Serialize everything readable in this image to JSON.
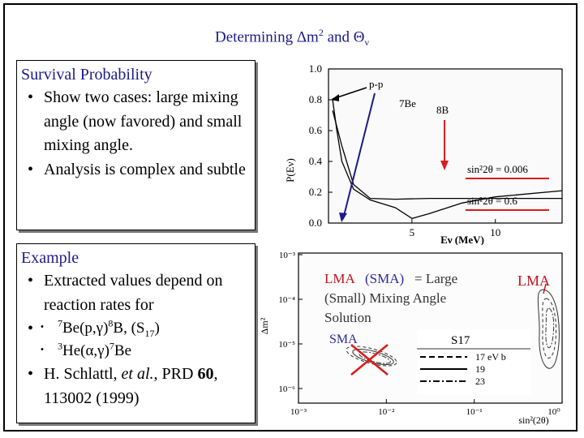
{
  "slide": {
    "title": {
      "prefix": "Determining ",
      "delta": "Δ",
      "m": "m",
      "exp": "2",
      "and": " and ",
      "theta": "Θ",
      "nu": "ν"
    }
  },
  "survival": {
    "heading": "Survival Probability",
    "bullets": [
      "Show two cases: large mixing angle (now favored) and small mixing angle.",
      "Analysis is complex and subtle"
    ]
  },
  "example": {
    "heading": "Example",
    "bullet1": "Extracted values depend on reaction rates for",
    "r1": {
      "m1": "7",
      "t1": "Be(p,γ)",
      "m2": "8",
      "t2": "B, (S",
      "s": "17",
      "t3": ")"
    },
    "r2": {
      "m1": "3",
      "t1": "He(α,γ)",
      "m2": "7",
      "t2": "Be"
    },
    "ref": {
      "pre": "H. Schlattl, ",
      "ital": "et al.",
      "mid": ", PRD ",
      "bold": "60",
      "post": ", 113002 (1999)"
    }
  },
  "chart_data": [
    {
      "type": "line",
      "xlabel": "Eν (MeV)",
      "ylabel": "P(Eν)",
      "xticks": [
        "5",
        "10"
      ],
      "yticks": [
        "0.0",
        "0.2",
        "0.4",
        "0.6",
        "0.8",
        "1.0"
      ],
      "ylim": [
        0,
        1.0
      ],
      "series": [
        {
          "name": "sin²2θ = 0.006",
          "points": [
            [
              0.25,
              0.73
            ],
            [
              0.8,
              0.5
            ],
            [
              1.5,
              0.25
            ],
            [
              2.5,
              0.16
            ],
            [
              4,
              0.155
            ],
            [
              6,
              0.16
            ],
            [
              10,
              0.16
            ],
            [
              14,
              0.16
            ]
          ]
        },
        {
          "name": "sin²2θ = 0.6",
          "points": [
            [
              0.25,
              0.8
            ],
            [
              0.5,
              0.6
            ],
            [
              0.8,
              0.4
            ],
            [
              1.5,
              0.22
            ],
            [
              2.5,
              0.15
            ],
            [
              4,
              0.1
            ],
            [
              5,
              0.03
            ],
            [
              6,
              0.06
            ],
            [
              8,
              0.13
            ],
            [
              10,
              0.17
            ],
            [
              14,
              0.21
            ]
          ]
        }
      ],
      "annotations": [
        "p-p",
        "7Be",
        "8B",
        "sin²2θ = 0.006",
        "sin²2θ = 0.6"
      ]
    },
    {
      "type": "scatter",
      "xlabel": "sin²(2θ)",
      "ylabel": "Δm²",
      "xticks": [
        "10⁻³",
        "10⁻²",
        "10⁻¹",
        "10⁰"
      ],
      "yticks": [
        "10⁻³",
        "10⁻⁴",
        "10⁻⁵",
        "10⁻⁶"
      ],
      "annotations": [
        "LMA",
        "(SMA)",
        "= Large",
        "(Small) Mixing Angle",
        "Solution",
        "SMA",
        "LMA"
      ],
      "legend": {
        "title": "S17",
        "entries": [
          "17 eV b",
          "19",
          "23"
        ]
      }
    }
  ]
}
